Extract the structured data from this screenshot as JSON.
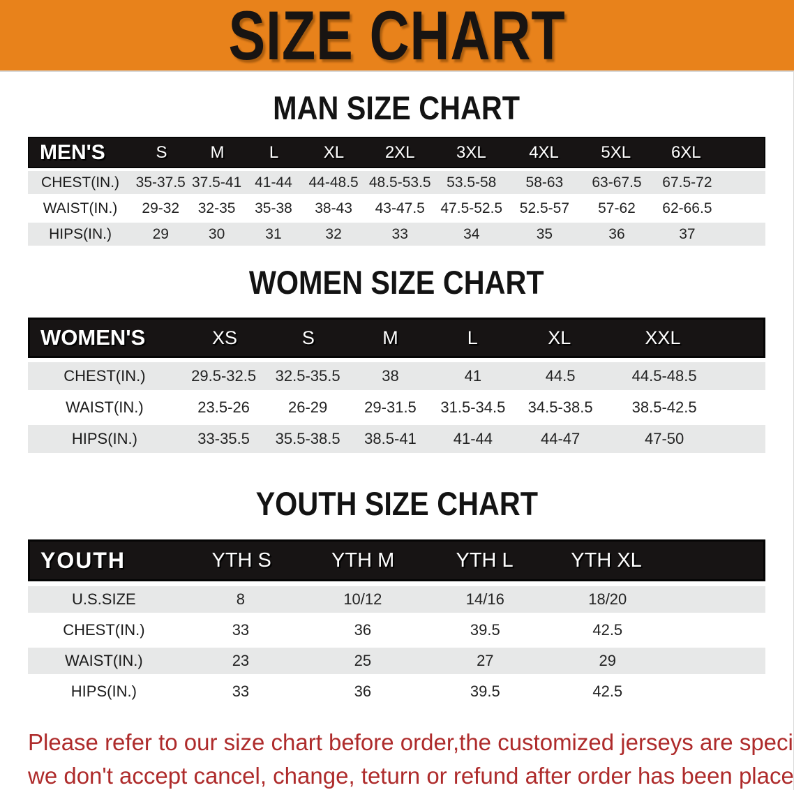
{
  "banner": {
    "title": "SIZE CHART"
  },
  "men": {
    "heading": "MAN SIZE CHART",
    "columns": [
      "MEN'S",
      "S",
      "M",
      "L",
      "XL",
      "2XL",
      "3XL",
      "4XL",
      "5XL",
      "6XL"
    ],
    "rows": [
      {
        "label": "CHEST(IN.)",
        "values": [
          "35-37.5",
          "37.5-41",
          "41-44",
          "44-48.5",
          "48.5-53.5",
          "53.5-58",
          "58-63",
          "63-67.5",
          "67.5-72"
        ]
      },
      {
        "label": "WAIST(IN.)",
        "values": [
          "29-32",
          "32-35",
          "35-38",
          "38-43",
          "43-47.5",
          "47.5-52.5",
          "52.5-57",
          "57-62",
          "62-66.5"
        ]
      },
      {
        "label": "HIPS(IN.)",
        "values": [
          "29",
          "30",
          "31",
          "32",
          "33",
          "34",
          "35",
          "36",
          "37"
        ]
      }
    ]
  },
  "women": {
    "heading": "WOMEN SIZE CHART",
    "columns": [
      "WOMEN'S",
      "XS",
      "S",
      "M",
      "L",
      "XL",
      "XXL"
    ],
    "rows": [
      {
        "label": "CHEST(IN.)",
        "values": [
          "29.5-32.5",
          "32.5-35.5",
          "38",
          "41",
          "44.5",
          "44.5-48.5"
        ]
      },
      {
        "label": "WAIST(IN.)",
        "values": [
          "23.5-26",
          "26-29",
          "29-31.5",
          "31.5-34.5",
          "34.5-38.5",
          "38.5-42.5"
        ]
      },
      {
        "label": "HIPS(IN.)",
        "values": [
          "33-35.5",
          "35.5-38.5",
          "38.5-41",
          "41-44",
          "44-47",
          "47-50"
        ]
      }
    ]
  },
  "youth": {
    "heading": "YOUTH SIZE CHART",
    "columns": [
      "YOUTH",
      "YTH S",
      "YTH M",
      "YTH L",
      "YTH XL"
    ],
    "rows": [
      {
        "label": "U.S.SIZE",
        "values": [
          "8",
          "10/12",
          "14/16",
          "18/20"
        ]
      },
      {
        "label": "CHEST(IN.)",
        "values": [
          "33",
          "36",
          "39.5",
          "42.5"
        ]
      },
      {
        "label": "WAIST(IN.)",
        "values": [
          "23",
          "25",
          "27",
          "29"
        ]
      },
      {
        "label": "HIPS(IN.)",
        "values": [
          "33",
          "36",
          "39.5",
          "42.5"
        ]
      }
    ]
  },
  "footer": {
    "line1": "Please refer to our size chart before order,the customized jerseys are special products,",
    "line2": "we don't accept cancel, change, teturn or refund after order has been placed!"
  },
  "colors": {
    "banner_bg": "#E8821B",
    "header_band": "#171414",
    "row_gray": "#E7E8E8",
    "footer_red": "#AE2B2B"
  }
}
